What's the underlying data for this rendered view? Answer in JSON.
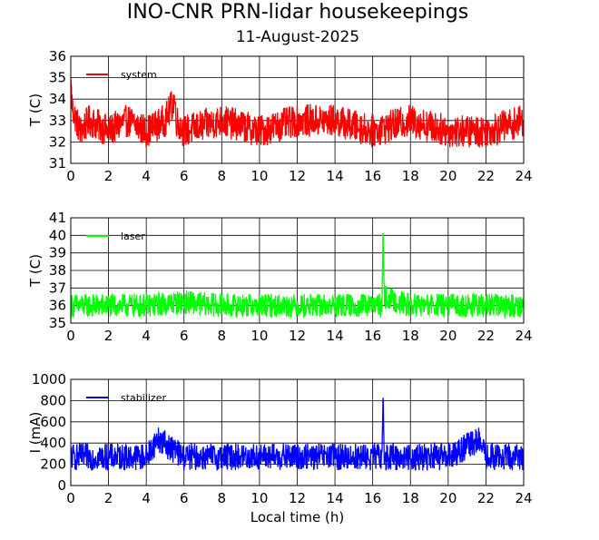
{
  "header": {
    "title": "INO-CNR PRN-lidar housekeepings",
    "date": "11-August-2025"
  },
  "chart_data": [
    {
      "type": "line",
      "ylabel": "T (C)",
      "xlabel": "",
      "xlim": [
        0,
        24
      ],
      "ylim": [
        31,
        36
      ],
      "xticks": [
        0,
        2,
        4,
        6,
        8,
        10,
        12,
        14,
        16,
        18,
        20,
        22,
        24
      ],
      "yticks": [
        31,
        32,
        33,
        34,
        35,
        36
      ],
      "grid": true,
      "legend_position": "top-left",
      "series": [
        {
          "name": "system",
          "color": "#ff0000",
          "base": 32.75,
          "noise_amplitude": 0.9,
          "x": [
            0.0,
            0.05,
            0.1,
            0.5,
            1.0,
            2.0,
            3.0,
            4.0,
            5.0,
            5.5,
            5.6,
            6.0,
            8.0,
            10.0,
            12.0,
            14.0,
            16.0,
            18.0,
            20.0,
            22.0,
            24.0
          ],
          "y": [
            35.0,
            34.0,
            33.5,
            32.5,
            33.0,
            32.5,
            33.0,
            32.5,
            33.0,
            34.0,
            33.0,
            32.5,
            33.0,
            32.5,
            33.0,
            33.0,
            32.5,
            33.0,
            32.5,
            32.5,
            33.0
          ]
        }
      ]
    },
    {
      "type": "line",
      "ylabel": "T (C)",
      "xlabel": "",
      "xlim": [
        0,
        24
      ],
      "ylim": [
        35,
        41
      ],
      "xticks": [
        0,
        2,
        4,
        6,
        8,
        10,
        12,
        14,
        16,
        18,
        20,
        22,
        24
      ],
      "yticks": [
        35,
        36,
        37,
        38,
        39,
        40,
        41
      ],
      "grid": true,
      "legend_position": "top-left",
      "series": [
        {
          "name": "laser",
          "color": "#00ff00",
          "base": 36.0,
          "noise_amplitude": 0.8,
          "x": [
            0.0,
            2.0,
            4.0,
            6.0,
            8.0,
            10.0,
            12.0,
            14.0,
            16.0,
            16.5,
            16.55,
            16.6,
            18.0,
            20.0,
            22.0,
            24.0
          ],
          "y": [
            36.0,
            36.0,
            36.0,
            36.2,
            36.0,
            36.0,
            36.0,
            36.0,
            36.0,
            36.0,
            40.8,
            36.5,
            36.0,
            36.0,
            36.0,
            36.0
          ]
        }
      ]
    },
    {
      "type": "line",
      "ylabel": "I (mA)",
      "xlabel": "Local time (h)",
      "xlim": [
        0,
        24
      ],
      "ylim": [
        0,
        1000
      ],
      "xticks": [
        0,
        2,
        4,
        6,
        8,
        10,
        12,
        14,
        16,
        18,
        20,
        22,
        24
      ],
      "yticks": [
        0,
        200,
        400,
        600,
        800,
        1000
      ],
      "grid": true,
      "legend_position": "top-left",
      "series": [
        {
          "name": "stabilizer",
          "color": "#0000ff",
          "base": 270,
          "noise_amplitude": 150,
          "x": [
            0.0,
            2.0,
            4.0,
            4.6,
            6.0,
            8.0,
            10.0,
            12.0,
            14.0,
            16.0,
            16.5,
            16.55,
            16.6,
            18.0,
            20.0,
            21.6,
            22.0,
            24.0
          ],
          "y": [
            270,
            270,
            270,
            440,
            270,
            270,
            270,
            270,
            270,
            270,
            270,
            920,
            270,
            270,
            270,
            430,
            270,
            270
          ]
        }
      ]
    }
  ]
}
